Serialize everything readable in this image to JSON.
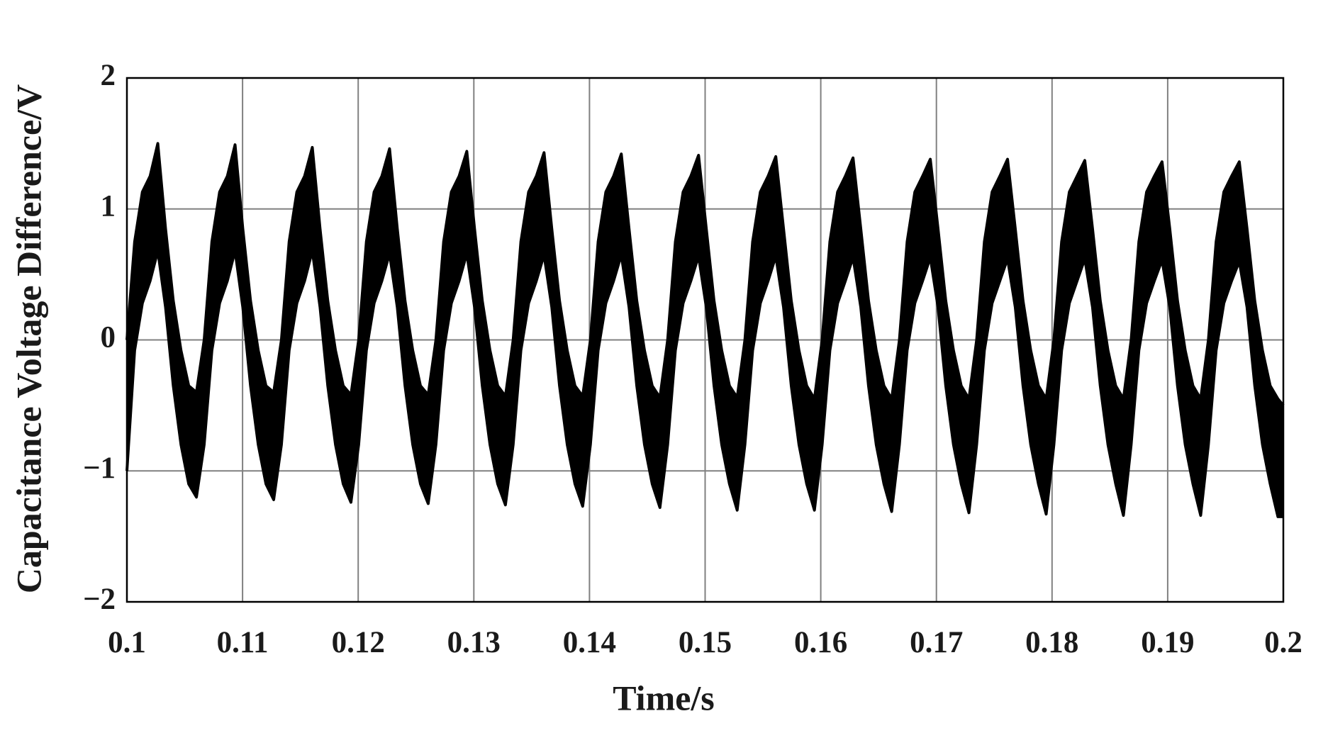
{
  "chart_data": {
    "type": "line",
    "xlabel": "Time/s",
    "ylabel": "Capacitance Voltage Difference/V",
    "x": [
      0.1,
      0.100668,
      0.101336,
      0.102004,
      0.102672,
      0.10334,
      0.104008,
      0.104676,
      0.105344,
      0.106012,
      0.10668,
      0.107348,
      0.108016,
      0.108684,
      0.109352,
      0.11002,
      0.110688,
      0.111356,
      0.112024,
      0.112692,
      0.11336,
      0.114028,
      0.114696,
      0.115364,
      0.116032,
      0.1167,
      0.117368,
      0.118036,
      0.118704,
      0.119372,
      0.12004,
      0.120708,
      0.121376,
      0.122044,
      0.122712,
      0.12338,
      0.124048,
      0.124716,
      0.125384,
      0.126052,
      0.12672,
      0.127388,
      0.128056,
      0.128724,
      0.129392,
      0.13006,
      0.130728,
      0.131396,
      0.132064,
      0.132732,
      0.1334,
      0.134068,
      0.134736,
      0.135404,
      0.136072,
      0.13674,
      0.137408,
      0.138076,
      0.138744,
      0.139412,
      0.14008,
      0.140748,
      0.141416,
      0.142084,
      0.142752,
      0.14342,
      0.144088,
      0.144756,
      0.145424,
      0.146092,
      0.14676,
      0.147428,
      0.148096,
      0.148764,
      0.149432,
      0.1501,
      0.150768,
      0.151436,
      0.152104,
      0.152772,
      0.15344,
      0.154108,
      0.154776,
      0.155444,
      0.156112,
      0.15678,
      0.157448,
      0.158116,
      0.158784,
      0.159452,
      0.16012,
      0.160788,
      0.161456,
      0.162124,
      0.162792,
      0.16346,
      0.164128,
      0.164796,
      0.165464,
      0.166132,
      0.1668,
      0.167468,
      0.168136,
      0.168804,
      0.169472,
      0.17014,
      0.170808,
      0.171476,
      0.172144,
      0.172812,
      0.17348,
      0.174148,
      0.174816,
      0.175484,
      0.176152,
      0.17682,
      0.177488,
      0.178156,
      0.178824,
      0.179492,
      0.18016,
      0.180828,
      0.181496,
      0.182164,
      0.182832,
      0.1835,
      0.184168,
      0.184836,
      0.185504,
      0.186172,
      0.18684,
      0.187508,
      0.188176,
      0.188844,
      0.189512,
      0.19018,
      0.190848,
      0.191516,
      0.192184,
      0.192852,
      0.19352,
      0.194188,
      0.194856,
      0.195524,
      0.196192,
      0.19686,
      0.197528,
      0.198196,
      0.198864,
      0.199532,
      0.2
    ],
    "series": [
      {
        "color": "#000000",
        "values": [
          0.0,
          0.75,
          1.13,
          1.25,
          1.5,
          0.85,
          0.3,
          -0.08,
          -0.35,
          -0.4,
          0.0,
          0.75,
          1.13,
          1.25,
          1.49,
          0.85,
          0.3,
          -0.08,
          -0.35,
          -0.4,
          0.0,
          0.75,
          1.13,
          1.25,
          1.47,
          0.85,
          0.3,
          -0.08,
          -0.35,
          -0.42,
          0.0,
          0.75,
          1.13,
          1.25,
          1.46,
          0.85,
          0.3,
          -0.08,
          -0.35,
          -0.42,
          0.0,
          0.75,
          1.13,
          1.25,
          1.44,
          0.85,
          0.3,
          -0.08,
          -0.35,
          -0.43,
          0.0,
          0.75,
          1.13,
          1.25,
          1.43,
          0.85,
          0.3,
          -0.08,
          -0.35,
          -0.43,
          0.0,
          0.75,
          1.13,
          1.25,
          1.42,
          0.85,
          0.3,
          -0.08,
          -0.35,
          -0.44,
          0.0,
          0.75,
          1.13,
          1.25,
          1.41,
          0.85,
          0.3,
          -0.08,
          -0.35,
          -0.44,
          0.0,
          0.75,
          1.13,
          1.25,
          1.4,
          0.85,
          0.3,
          -0.08,
          -0.35,
          -0.45,
          0.0,
          0.75,
          1.13,
          1.25,
          1.39,
          0.85,
          0.3,
          -0.08,
          -0.35,
          -0.45,
          0.0,
          0.75,
          1.13,
          1.25,
          1.38,
          0.85,
          0.3,
          -0.08,
          -0.35,
          -0.45,
          0.0,
          0.75,
          1.13,
          1.25,
          1.38,
          0.85,
          0.3,
          -0.08,
          -0.35,
          -0.45,
          0.0,
          0.75,
          1.13,
          1.25,
          1.37,
          0.85,
          0.3,
          -0.08,
          -0.35,
          -0.45,
          0.0,
          0.75,
          1.13,
          1.25,
          1.36,
          0.85,
          0.3,
          -0.08,
          -0.35,
          -0.45,
          0.0,
          0.75,
          1.13,
          1.25,
          1.36,
          0.85,
          0.3,
          -0.08,
          -0.35,
          -0.45,
          -0.5
        ]
      },
      {
        "color": "#000000",
        "values": [
          -1.0,
          -0.08,
          0.28,
          0.45,
          0.68,
          0.25,
          -0.35,
          -0.8,
          -1.1,
          -1.2,
          -0.8,
          -0.08,
          0.28,
          0.45,
          0.68,
          0.25,
          -0.35,
          -0.8,
          -1.1,
          -1.22,
          -0.8,
          -0.08,
          0.28,
          0.45,
          0.68,
          0.25,
          -0.35,
          -0.8,
          -1.1,
          -1.24,
          -0.8,
          -0.08,
          0.28,
          0.45,
          0.66,
          0.25,
          -0.35,
          -0.8,
          -1.1,
          -1.25,
          -0.8,
          -0.08,
          0.28,
          0.45,
          0.66,
          0.25,
          -0.35,
          -0.8,
          -1.1,
          -1.26,
          -0.8,
          -0.08,
          0.28,
          0.45,
          0.65,
          0.25,
          -0.35,
          -0.8,
          -1.1,
          -1.27,
          -0.8,
          -0.08,
          0.28,
          0.45,
          0.65,
          0.25,
          -0.35,
          -0.8,
          -1.1,
          -1.28,
          -0.8,
          -0.08,
          0.28,
          0.45,
          0.64,
          0.25,
          -0.35,
          -0.8,
          -1.1,
          -1.3,
          -0.8,
          -0.08,
          0.28,
          0.45,
          0.64,
          0.25,
          -0.35,
          -0.8,
          -1.1,
          -1.3,
          -0.8,
          -0.08,
          0.28,
          0.45,
          0.63,
          0.25,
          -0.35,
          -0.8,
          -1.1,
          -1.31,
          -0.8,
          -0.08,
          0.28,
          0.45,
          0.63,
          0.25,
          -0.35,
          -0.8,
          -1.1,
          -1.32,
          -0.8,
          -0.08,
          0.28,
          0.45,
          0.62,
          0.25,
          -0.35,
          -0.8,
          -1.1,
          -1.33,
          -0.8,
          -0.08,
          0.28,
          0.45,
          0.62,
          0.25,
          -0.35,
          -0.8,
          -1.1,
          -1.34,
          -0.8,
          -0.08,
          0.28,
          0.45,
          0.61,
          0.25,
          -0.35,
          -0.8,
          -1.1,
          -1.34,
          -0.8,
          -0.08,
          0.28,
          0.45,
          0.6,
          0.25,
          -0.35,
          -0.8,
          -1.1,
          -1.35,
          -1.35
        ]
      }
    ],
    "xlim": [
      0.1,
      0.2
    ],
    "ylim": [
      -2,
      2
    ],
    "xticks": [
      0.1,
      0.11,
      0.12,
      0.13,
      0.14,
      0.15,
      0.16,
      0.17,
      0.18,
      0.19,
      0.2
    ],
    "yticks": [
      {
        "value": -2,
        "label": "−2"
      },
      {
        "value": -1,
        "label": "−1"
      },
      0,
      1,
      2
    ],
    "grid": true,
    "grid_color": "#808080"
  }
}
